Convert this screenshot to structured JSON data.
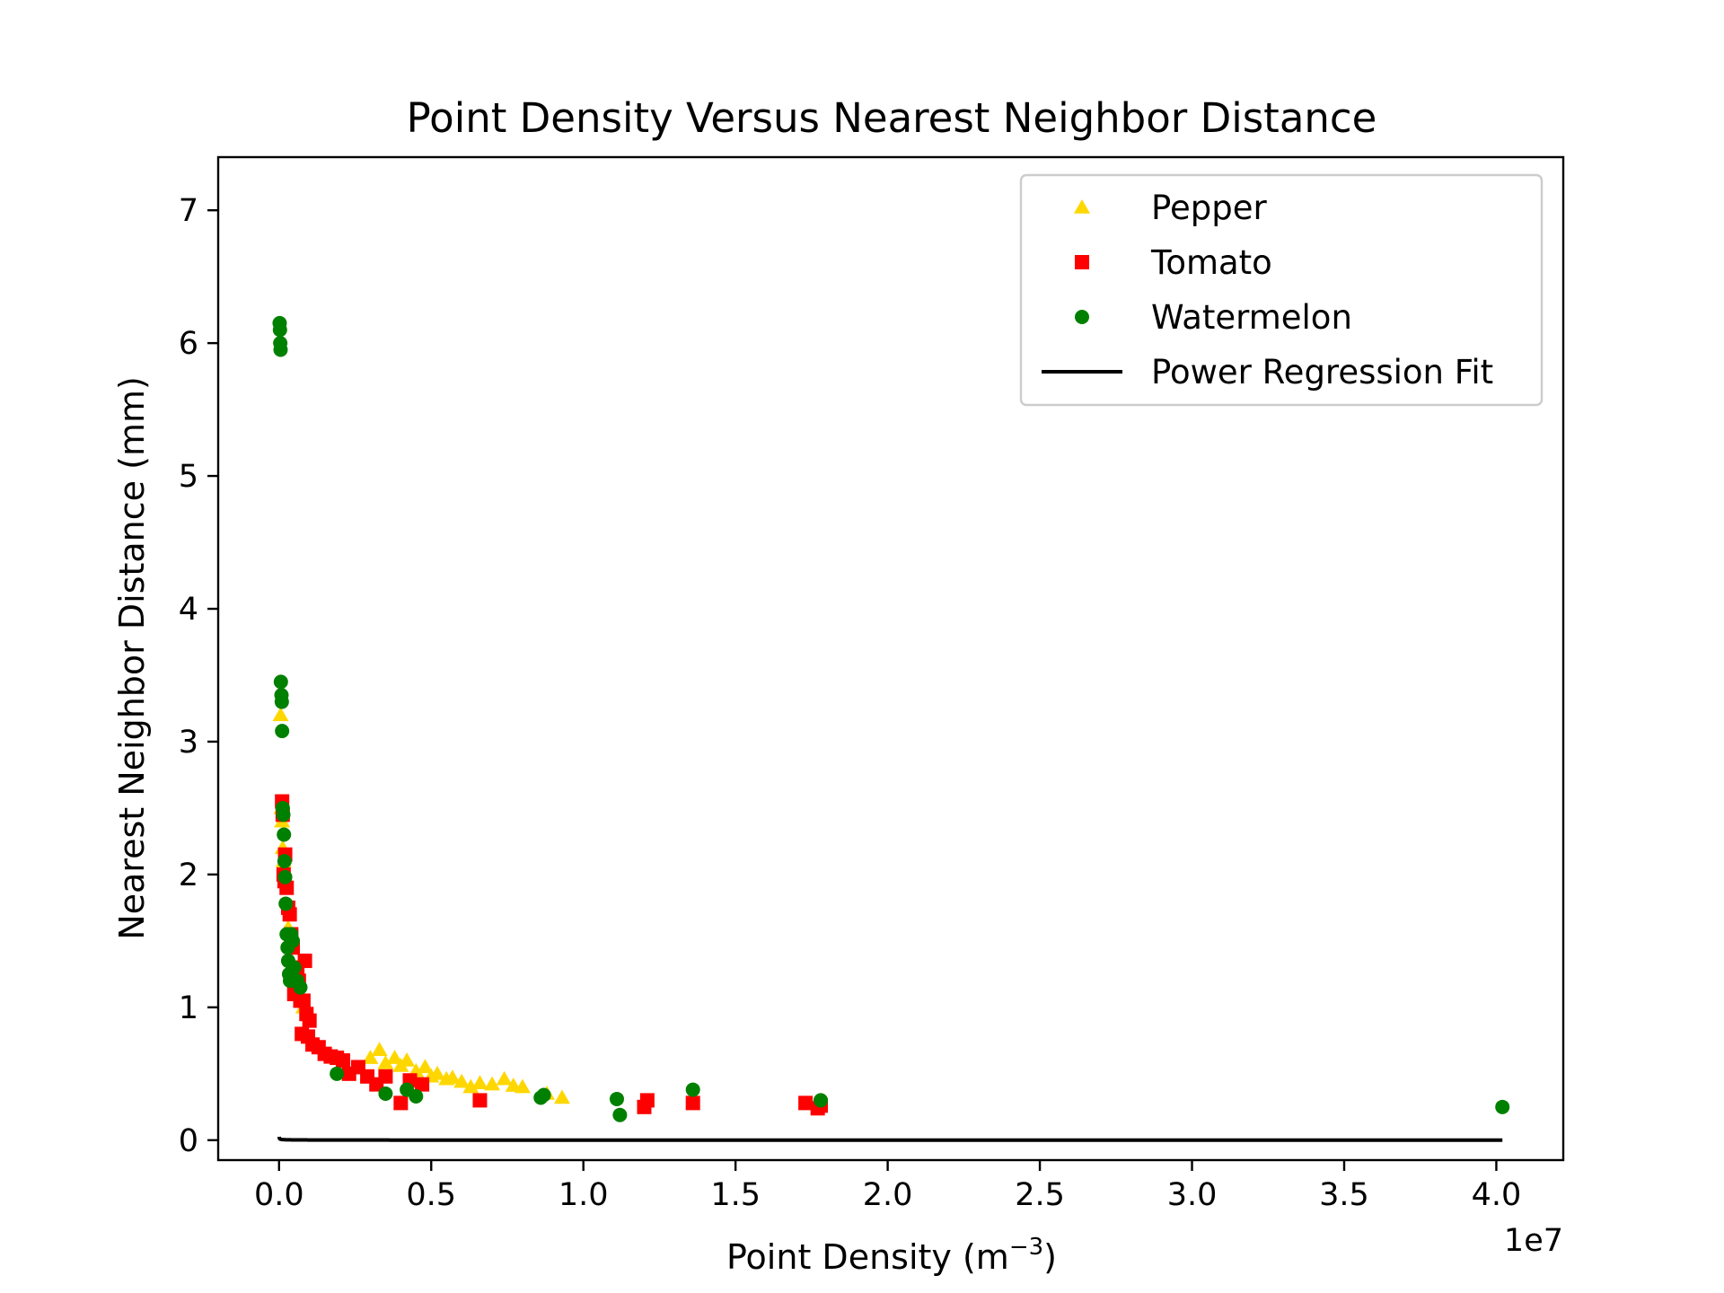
{
  "chart_data": {
    "type": "scatter",
    "title": "Point Density Versus Nearest Neighbor Distance",
    "xlabel_main": "Point Density (m",
    "xlabel_sup": "−3",
    "xlabel_end": ")",
    "ylabel": "Nearest Neighbor Distance (mm)",
    "x_offset_text": "1e7",
    "x_scale": 10000000,
    "xlim": [
      -0.2,
      4.22
    ],
    "ylim": [
      -0.15,
      7.4
    ],
    "xticks": [
      0.0,
      0.5,
      1.0,
      1.5,
      2.0,
      2.5,
      3.0,
      3.5,
      4.0
    ],
    "xtick_labels": [
      "0.0",
      "0.5",
      "1.0",
      "1.5",
      "2.0",
      "2.5",
      "3.0",
      "3.5",
      "4.0"
    ],
    "yticks": [
      0,
      1,
      2,
      3,
      4,
      5,
      6,
      7
    ],
    "ytick_labels": [
      "0",
      "1",
      "2",
      "3",
      "4",
      "5",
      "6",
      "7"
    ],
    "grid": false,
    "legend_position": "top-right",
    "series": [
      {
        "name": "Pepper",
        "marker": "triangle",
        "color": "#FFD700",
        "x": [
          0.005,
          0.008,
          0.01,
          0.012,
          0.015,
          0.03,
          0.05,
          0.08,
          0.3,
          0.33,
          0.35,
          0.38,
          0.4,
          0.42,
          0.45,
          0.48,
          0.5,
          0.52,
          0.55,
          0.57,
          0.6,
          0.63,
          0.66,
          0.7,
          0.74,
          0.77,
          0.8,
          0.88,
          0.93
        ],
        "y": [
          3.2,
          2.5,
          2.4,
          2.2,
          2.1,
          1.6,
          1.3,
          1.0,
          0.62,
          0.68,
          0.58,
          0.62,
          0.56,
          0.6,
          0.52,
          0.55,
          0.48,
          0.5,
          0.46,
          0.47,
          0.44,
          0.4,
          0.43,
          0.42,
          0.46,
          0.41,
          0.4,
          0.35,
          0.32
        ]
      },
      {
        "name": "Tomato",
        "marker": "square",
        "color": "#FF0000",
        "x": [
          0.01,
          0.012,
          0.015,
          0.018,
          0.02,
          0.025,
          0.03,
          0.035,
          0.04,
          0.045,
          0.05,
          0.06,
          0.065,
          0.07,
          0.075,
          0.08,
          0.085,
          0.09,
          0.095,
          0.1,
          0.11,
          0.13,
          0.15,
          0.17,
          0.19,
          0.21,
          0.23,
          0.26,
          0.29,
          0.32,
          0.35,
          0.4,
          0.43,
          0.47,
          0.66,
          1.2,
          1.21,
          1.36,
          1.73,
          1.77,
          1.78
        ],
        "y": [
          2.55,
          2.45,
          2.0,
          1.95,
          2.15,
          1.9,
          1.75,
          1.7,
          1.55,
          1.45,
          1.1,
          1.3,
          1.2,
          1.05,
          0.8,
          1.05,
          1.35,
          0.95,
          0.78,
          0.9,
          0.72,
          0.7,
          0.65,
          0.63,
          0.62,
          0.6,
          0.5,
          0.55,
          0.48,
          0.42,
          0.48,
          0.28,
          0.45,
          0.42,
          0.3,
          0.25,
          0.3,
          0.28,
          0.28,
          0.24,
          0.26
        ]
      },
      {
        "name": "Watermelon",
        "marker": "circle",
        "color": "#008000",
        "x": [
          0.002,
          0.003,
          0.004,
          0.005,
          0.006,
          0.008,
          0.009,
          0.01,
          0.012,
          0.014,
          0.016,
          0.018,
          0.02,
          0.022,
          0.025,
          0.028,
          0.03,
          0.033,
          0.036,
          0.04,
          0.045,
          0.05,
          0.06,
          0.07,
          0.19,
          0.35,
          0.42,
          0.45,
          0.86,
          0.87,
          1.11,
          1.12,
          1.36,
          1.78,
          4.02
        ],
        "y": [
          6.15,
          6.1,
          6.0,
          5.95,
          3.45,
          3.35,
          3.3,
          3.08,
          2.5,
          2.45,
          2.3,
          2.1,
          1.98,
          1.78,
          1.55,
          1.45,
          1.35,
          1.25,
          1.2,
          1.55,
          1.5,
          1.3,
          1.2,
          1.15,
          0.5,
          0.35,
          0.38,
          0.33,
          0.32,
          0.34,
          0.31,
          0.19,
          0.38,
          0.3,
          0.25
        ]
      }
    ],
    "fit": {
      "name": "Power Regression Fit",
      "color": "#000000",
      "model": "y = a * x^b",
      "a": 0.0005,
      "b": -0.5,
      "x_range": [
        0.0004,
        4.02
      ]
    }
  }
}
